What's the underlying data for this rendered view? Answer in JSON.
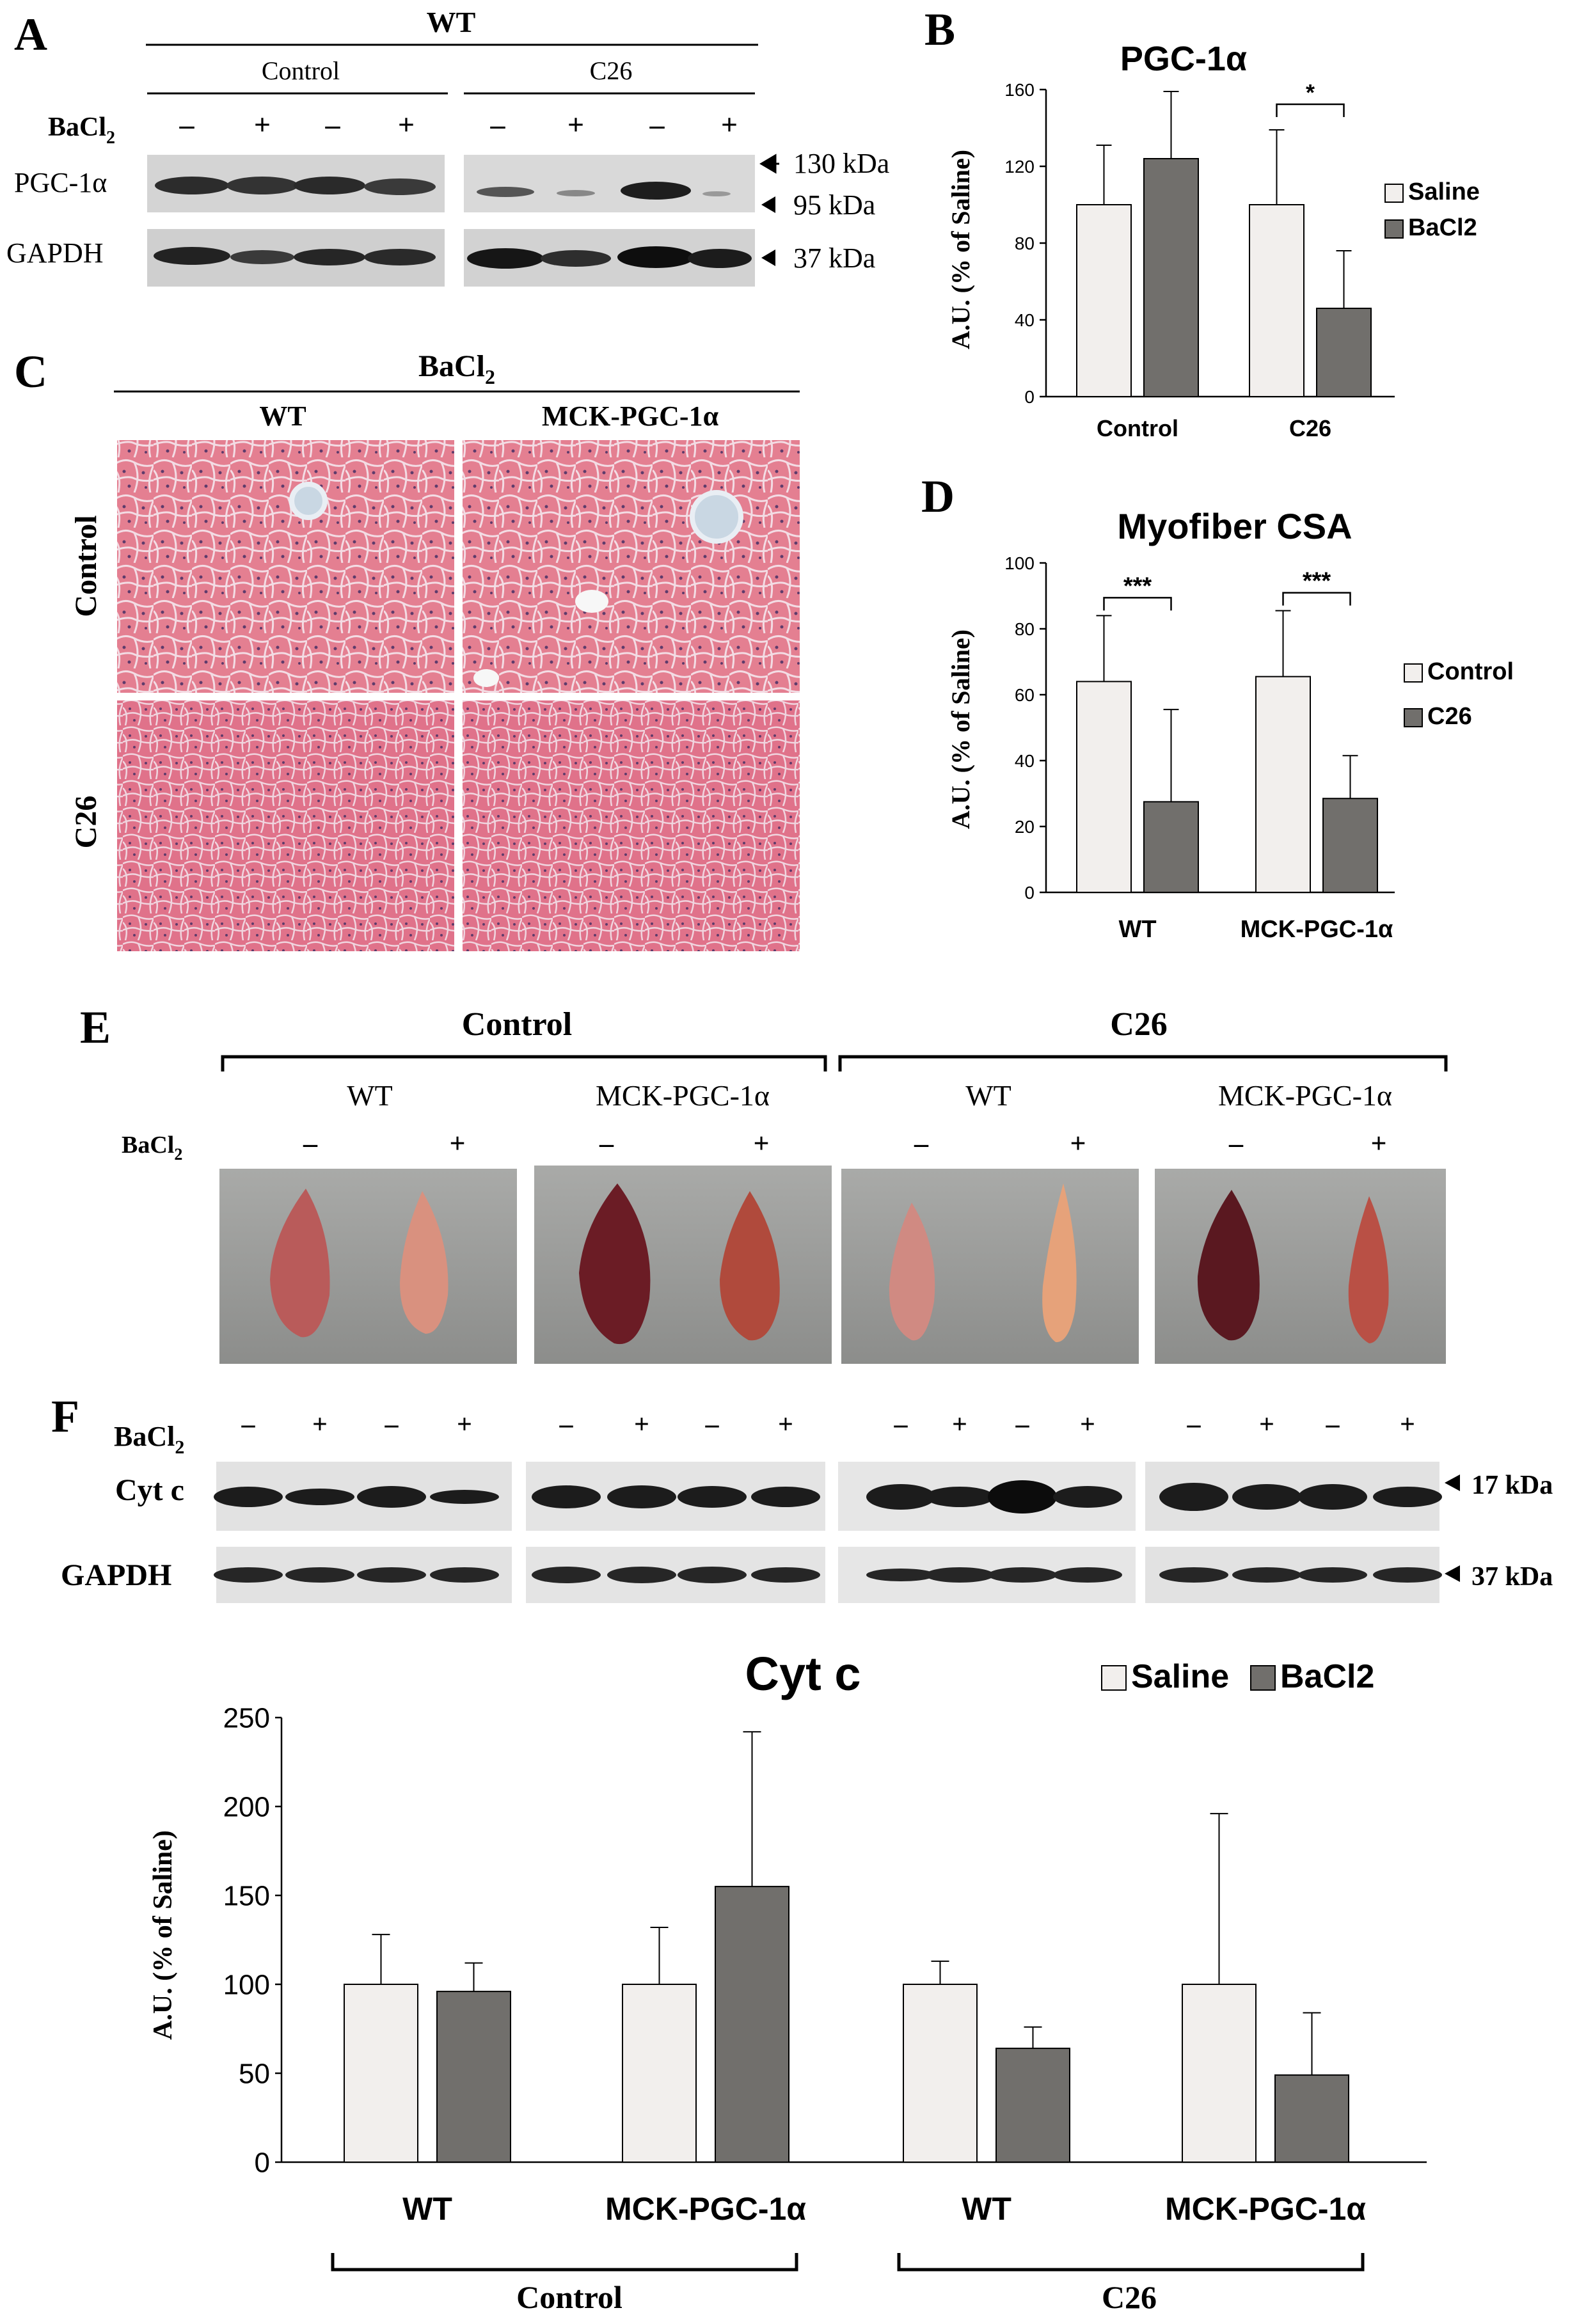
{
  "colors": {
    "saline": "#f2efed",
    "bacl2": "#716f6c",
    "he_light": "#e27a8c",
    "he_dark": "#cf5a70"
  },
  "panel_letters": [
    "A",
    "B",
    "C",
    "D",
    "E",
    "F"
  ],
  "panel_a": {
    "header": "WT",
    "groups": [
      "Control",
      "C26"
    ],
    "treatment_label": "BaCl",
    "treatment_sub": "2",
    "signs": [
      "–",
      "+",
      "–",
      "+",
      "–",
      "+",
      "–",
      "+"
    ],
    "rows": [
      "PGC-1α",
      "GAPDH"
    ],
    "markers": [
      "130 kDa",
      "95 kDa",
      "37 kDa"
    ]
  },
  "panel_c": {
    "header": "BaCl",
    "header_sub": "2",
    "columns": [
      "WT",
      "MCK-PGC-1α"
    ],
    "rows": [
      "Control",
      "C26"
    ]
  },
  "panel_e": {
    "groups": [
      "Control",
      "C26"
    ],
    "genotypes": [
      "WT",
      "MCK-PGC-1α",
      "WT",
      "MCK-PGC-1α"
    ],
    "treatment_label": "BaCl",
    "treatment_sub": "2",
    "signs": [
      "–",
      "+",
      "–",
      "+",
      "–",
      "+",
      "–",
      "+"
    ]
  },
  "panel_f": {
    "treatment_label": "BaCl",
    "treatment_sub": "2",
    "signs": [
      "–",
      "+",
      "–",
      "+",
      "–",
      "+",
      "–",
      "+",
      "–",
      "+",
      "–",
      "+",
      "–",
      "+",
      "–",
      "+"
    ],
    "rows": [
      "Cyt c",
      "GAPDH"
    ],
    "markers": [
      "17 kDa",
      "37 kDa"
    ]
  },
  "chart_data": [
    {
      "panel": "B",
      "type": "bar",
      "title": "PGC-1α",
      "ylabel": "A.U. (% of Saline)",
      "xlabel": "",
      "ylim": [
        0,
        160
      ],
      "yticks": [
        0,
        40,
        80,
        120,
        160
      ],
      "categories": [
        "Control",
        "C26"
      ],
      "series": [
        {
          "name": "Saline",
          "values": [
            100,
            100
          ],
          "errors": [
            31,
            39
          ]
        },
        {
          "name": "BaCl2",
          "values": [
            124,
            46
          ],
          "errors": [
            35,
            30
          ]
        }
      ],
      "significance": [
        {
          "label": "*",
          "category": 1
        }
      ],
      "legend": "right",
      "grid": false
    },
    {
      "panel": "D",
      "type": "bar",
      "title": "Myofiber CSA",
      "ylabel": "A.U. (% of Saline)",
      "xlabel": "",
      "ylim": [
        0,
        100
      ],
      "yticks": [
        0,
        20,
        40,
        60,
        80,
        100
      ],
      "categories": [
        "WT",
        "MCK-PGC-1α"
      ],
      "series": [
        {
          "name": "Control",
          "values": [
            64,
            65.5
          ],
          "errors": [
            20,
            20
          ]
        },
        {
          "name": "C26",
          "values": [
            27.5,
            28.5
          ],
          "errors": [
            28,
            13
          ]
        }
      ],
      "significance": [
        {
          "label": "***",
          "category": 0
        },
        {
          "label": "***",
          "category": 1
        }
      ],
      "legend": "right",
      "grid": false
    },
    {
      "panel": "F",
      "type": "bar",
      "title": "Cyt c",
      "ylabel": "A.U. (% of Saline)",
      "xlabel": "",
      "ylim": [
        0,
        250
      ],
      "yticks": [
        0,
        50,
        100,
        150,
        200,
        250
      ],
      "categories": [
        "WT",
        "MCK-PGC-1α",
        "WT",
        "MCK-PGC-1α"
      ],
      "groups": [
        "Control",
        "C26"
      ],
      "series": [
        {
          "name": "Saline",
          "values": [
            100,
            100,
            100,
            100
          ],
          "errors": [
            28,
            32,
            13,
            96
          ]
        },
        {
          "name": "BaCl2",
          "values": [
            96,
            155,
            64,
            49
          ],
          "errors": [
            16,
            87,
            12,
            35
          ]
        }
      ],
      "legend": "top-right",
      "grid": false
    }
  ]
}
